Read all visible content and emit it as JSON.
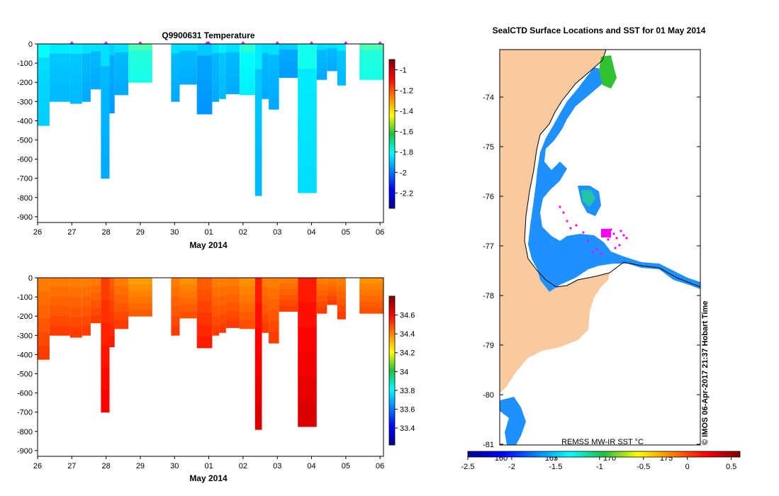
{
  "chart_data": [
    {
      "type": "heatmap",
      "title": "Q9900631  Temperature",
      "xlabel": "May 2014",
      "ylabel": "",
      "xlim": [
        26,
        36.1
      ],
      "ylim": [
        -930,
        0
      ],
      "x_ticks": [
        "26",
        "27",
        "28",
        "29",
        "30",
        "01",
        "02",
        "03",
        "04",
        "05",
        "06"
      ],
      "y_ticks": [
        "0",
        "-100",
        "-200",
        "-300",
        "-400",
        "-500",
        "-600",
        "-700",
        "-800",
        "-900"
      ],
      "colorbar": {
        "min": -2.35,
        "max": -0.9,
        "ticks": [
          "-1",
          "-1.2",
          "-1.4",
          "-1.6",
          "-1.8",
          "-2",
          "-2.2"
        ]
      },
      "profiles": [
        {
          "x0": 26.0,
          "x1": 26.35,
          "depth": 425,
          "value": -1.85
        },
        {
          "x0": 26.35,
          "x1": 26.95,
          "depth": 300,
          "value": -1.88
        },
        {
          "x0": 26.95,
          "x1": 27.3,
          "depth": 310,
          "value": -1.88
        },
        {
          "x0": 27.3,
          "x1": 27.55,
          "depth": 300,
          "value": -1.9
        },
        {
          "x0": 27.55,
          "x1": 27.85,
          "depth": 235,
          "value": -1.9
        },
        {
          "x0": 27.85,
          "x1": 28.1,
          "depth": 700,
          "value": -1.9
        },
        {
          "x0": 28.1,
          "x1": 28.25,
          "depth": 360,
          "value": -1.92
        },
        {
          "x0": 28.25,
          "x1": 28.65,
          "depth": 265,
          "value": -1.9
        },
        {
          "x0": 28.65,
          "x1": 29.35,
          "depth": 200,
          "value": -1.75
        },
        {
          "x0": 29.9,
          "x1": 30.15,
          "depth": 300,
          "value": -1.9
        },
        {
          "x0": 30.15,
          "x1": 30.65,
          "depth": 210,
          "value": -1.9
        },
        {
          "x0": 30.65,
          "x1": 31.1,
          "depth": 365,
          "value": -1.93
        },
        {
          "x0": 31.1,
          "x1": 31.3,
          "depth": 300,
          "value": -1.9
        },
        {
          "x0": 31.3,
          "x1": 31.5,
          "depth": 285,
          "value": -1.88
        },
        {
          "x0": 31.5,
          "x1": 31.9,
          "depth": 260,
          "value": -1.9
        },
        {
          "x0": 31.9,
          "x1": 32.35,
          "depth": 265,
          "value": -1.8
        },
        {
          "x0": 32.35,
          "x1": 32.55,
          "depth": 790,
          "value": -1.88
        },
        {
          "x0": 32.55,
          "x1": 32.75,
          "depth": 285,
          "value": -1.9
        },
        {
          "x0": 32.75,
          "x1": 33.05,
          "depth": 340,
          "value": -1.9
        },
        {
          "x0": 33.05,
          "x1": 33.6,
          "depth": 175,
          "value": -1.92
        },
        {
          "x0": 33.6,
          "x1": 34.15,
          "depth": 775,
          "value": -1.83
        },
        {
          "x0": 34.15,
          "x1": 34.45,
          "depth": 185,
          "value": -1.9
        },
        {
          "x0": 34.45,
          "x1": 34.75,
          "depth": 140,
          "value": -1.9
        },
        {
          "x0": 34.75,
          "x1": 35.0,
          "depth": 215,
          "value": -1.88
        },
        {
          "x0": 35.4,
          "x1": 36.1,
          "depth": 185,
          "value": -1.75
        }
      ],
      "surface_markers": [
        27.0,
        28.0,
        29.0,
        30.95,
        31.0,
        32.0,
        33.0,
        34.0,
        35.0,
        36.0
      ]
    },
    {
      "type": "heatmap",
      "title": "",
      "xlabel": "May 2014",
      "ylabel": "",
      "xlim": [
        26,
        36.1
      ],
      "ylim": [
        -930,
        0
      ],
      "x_ticks": [
        "26",
        "27",
        "28",
        "29",
        "30",
        "01",
        "02",
        "03",
        "04",
        "05",
        "06"
      ],
      "y_ticks": [
        "0",
        "-100",
        "-200",
        "-300",
        "-400",
        "-500",
        "-600",
        "-700",
        "-800",
        "-900"
      ],
      "colorbar": {
        "min": 33.22,
        "max": 34.8,
        "ticks": [
          "34.6",
          "34.4",
          "34.2",
          "34",
          "33.8",
          "33.6",
          "33.4"
        ]
      },
      "profiles": [
        {
          "x0": 26.0,
          "x1": 26.35,
          "depth": 425,
          "value": 34.45
        },
        {
          "x0": 26.35,
          "x1": 26.95,
          "depth": 300,
          "value": 34.45
        },
        {
          "x0": 26.95,
          "x1": 27.3,
          "depth": 310,
          "value": 34.45
        },
        {
          "x0": 27.3,
          "x1": 27.55,
          "depth": 300,
          "value": 34.45
        },
        {
          "x0": 27.55,
          "x1": 27.85,
          "depth": 235,
          "value": 34.45
        },
        {
          "x0": 27.85,
          "x1": 28.1,
          "depth": 700,
          "value": 34.55
        },
        {
          "x0": 28.1,
          "x1": 28.25,
          "depth": 360,
          "value": 34.5
        },
        {
          "x0": 28.25,
          "x1": 28.65,
          "depth": 265,
          "value": 34.45
        },
        {
          "x0": 28.65,
          "x1": 29.35,
          "depth": 200,
          "value": 34.4
        },
        {
          "x0": 29.9,
          "x1": 30.15,
          "depth": 300,
          "value": 34.45
        },
        {
          "x0": 30.15,
          "x1": 30.65,
          "depth": 210,
          "value": 34.42
        },
        {
          "x0": 30.65,
          "x1": 31.1,
          "depth": 365,
          "value": 34.5
        },
        {
          "x0": 31.1,
          "x1": 31.3,
          "depth": 300,
          "value": 34.45
        },
        {
          "x0": 31.3,
          "x1": 31.5,
          "depth": 285,
          "value": 34.45
        },
        {
          "x0": 31.5,
          "x1": 31.9,
          "depth": 260,
          "value": 34.45
        },
        {
          "x0": 31.9,
          "x1": 32.35,
          "depth": 265,
          "value": 34.42
        },
        {
          "x0": 32.35,
          "x1": 32.55,
          "depth": 790,
          "value": 34.6
        },
        {
          "x0": 32.55,
          "x1": 32.75,
          "depth": 285,
          "value": 34.45
        },
        {
          "x0": 32.75,
          "x1": 33.05,
          "depth": 340,
          "value": 34.45
        },
        {
          "x0": 33.05,
          "x1": 33.6,
          "depth": 175,
          "value": 34.45
        },
        {
          "x0": 33.6,
          "x1": 34.15,
          "depth": 775,
          "value": 34.6
        },
        {
          "x0": 34.15,
          "x1": 34.45,
          "depth": 185,
          "value": 34.45
        },
        {
          "x0": 34.45,
          "x1": 34.75,
          "depth": 140,
          "value": 34.45
        },
        {
          "x0": 34.75,
          "x1": 35.0,
          "depth": 215,
          "value": 34.45
        },
        {
          "x0": 35.4,
          "x1": 36.1,
          "depth": 185,
          "value": 34.42
        }
      ]
    }
  ],
  "map": {
    "title": "SealCTD Surface Locations and SST for 01 May 2014",
    "lat_ticks": [
      "-74",
      "-75",
      "-76",
      "-77",
      "-78",
      "-79",
      "-80",
      "-81"
    ],
    "lon_ticks": [
      "160",
      "165",
      "170",
      "175"
    ],
    "credit": "© IMOS 06-Apr-2017 21:37 Hobart Time",
    "sst_label": "REMSS MW-IR SST °C",
    "sst_colorbar": {
      "min": -2.5,
      "max": 0.6,
      "ticks": [
        "-2.5",
        "-2",
        "-1.5",
        "-1",
        "-0.5",
        "0",
        "0.5"
      ]
    },
    "colors": {
      "land": "#f9c9a0",
      "sea_ice": "#ffffff",
      "sst_cold": "#1e90ff",
      "positions": "#ff00ff"
    }
  }
}
